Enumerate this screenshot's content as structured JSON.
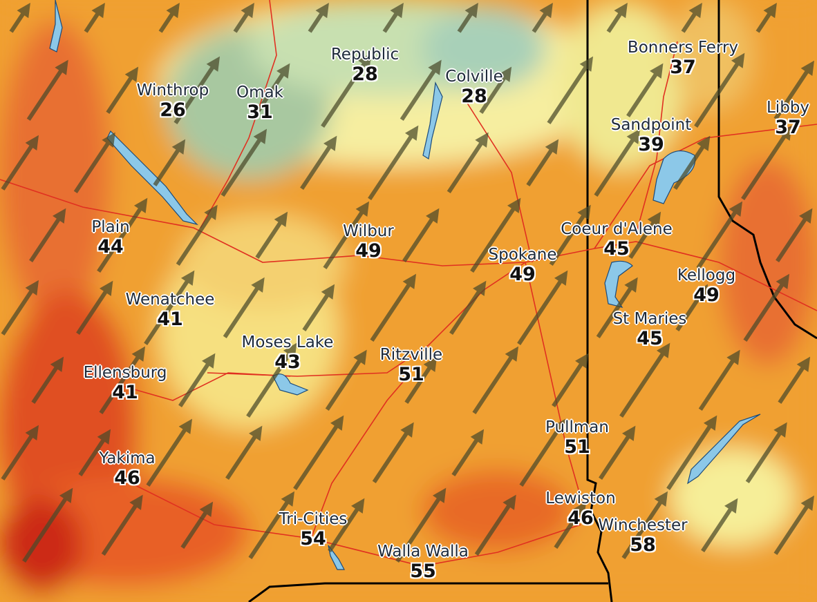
{
  "map": {
    "wind_direction_from_deg": 225,
    "colors": {
      "low": "#8fbfa0",
      "mid_low": "#f6f0a0",
      "mid": "#f2b040",
      "high": "#e8702a",
      "very_high": "#d8301a",
      "roads": "#e03020",
      "water": "#8cc8e8",
      "state_border": "#000000",
      "wind_arrow": "#4a4a2a"
    },
    "cities": [
      {
        "name": "Republic",
        "value": "28"
      },
      {
        "name": "Colville",
        "value": "28"
      },
      {
        "name": "Winthrop",
        "value": "26"
      },
      {
        "name": "Omak",
        "value": "31"
      },
      {
        "name": "Bonners Ferry",
        "value": "37"
      },
      {
        "name": "Libby",
        "value": "37"
      },
      {
        "name": "Sandpoint",
        "value": "39"
      },
      {
        "name": "Plain",
        "value": "44"
      },
      {
        "name": "Wilbur",
        "value": "49"
      },
      {
        "name": "Coeur d'Alene",
        "value": "45"
      },
      {
        "name": "Spokane",
        "value": "49"
      },
      {
        "name": "Kellogg",
        "value": "49"
      },
      {
        "name": "Wenatchee",
        "value": "41"
      },
      {
        "name": "St Maries",
        "value": "45"
      },
      {
        "name": "Moses Lake",
        "value": "43"
      },
      {
        "name": "Ritzville",
        "value": "51"
      },
      {
        "name": "Ellensburg",
        "value": "41"
      },
      {
        "name": "Pullman",
        "value": "51"
      },
      {
        "name": "Yakima",
        "value": "46"
      },
      {
        "name": "Lewiston",
        "value": "46"
      },
      {
        "name": "Winchester",
        "value": "58"
      },
      {
        "name": "Tri-Cities",
        "value": "54"
      },
      {
        "name": "Walla Walla",
        "value": "55"
      }
    ]
  }
}
